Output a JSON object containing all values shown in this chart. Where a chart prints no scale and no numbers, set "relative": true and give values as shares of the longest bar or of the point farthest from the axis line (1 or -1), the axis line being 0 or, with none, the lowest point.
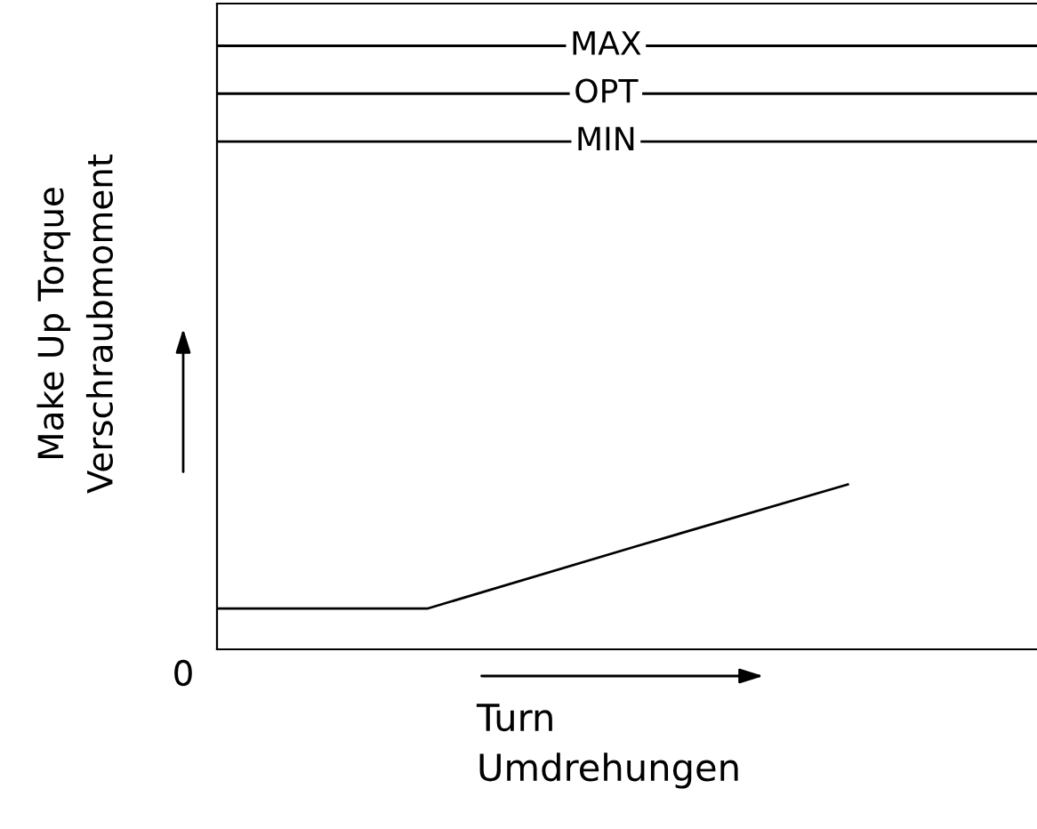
{
  "chart_data": {
    "type": "line",
    "relative": true,
    "xlabel": "Turn\nUmdrehungen",
    "ylabel": "Make Up Torque\nVerschraubmoment",
    "categories": [
      null,
      null,
      null,
      null
    ],
    "series": [
      {
        "color": "#000000",
        "values": [
          0.247,
          0.247,
          0.627,
          1
        ]
      }
    ],
    "ref_lines": [
      {
        "axis": "y",
        "value": 3.66,
        "label": "MAX",
        "color": "#000000"
      },
      {
        "axis": "y",
        "value": 3.37,
        "label": "OPT",
        "color": "#000000"
      },
      {
        "axis": "y",
        "value": 3.08,
        "label": "MIN",
        "color": "#000000"
      }
    ],
    "annotations": [
      "0"
    ],
    "legend": false
  }
}
